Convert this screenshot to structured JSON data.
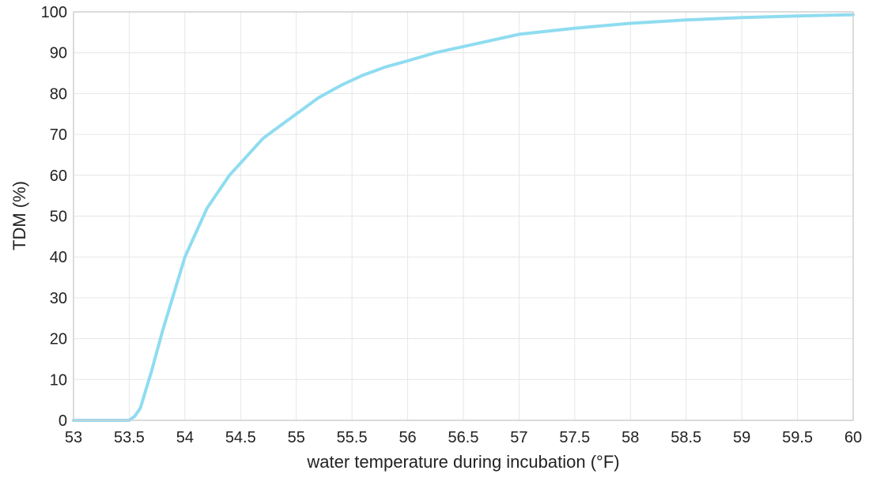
{
  "chart_data": {
    "type": "line",
    "title": "",
    "xlabel": "water temperature during incubation (°F)",
    "ylabel": "TDM (%)",
    "xlim": [
      53,
      60
    ],
    "ylim": [
      0,
      100
    ],
    "xticks": [
      53,
      53.5,
      54,
      54.5,
      55,
      55.5,
      56,
      56.5,
      57,
      57.5,
      58,
      58.5,
      59,
      59.5,
      60
    ],
    "xtick_labels": [
      "53",
      "53.5",
      "54",
      "54.5",
      "55",
      "55.5",
      "56",
      "56.5",
      "57",
      "57.5",
      "58",
      "58.5",
      "59",
      "59.5",
      "60"
    ],
    "yticks": [
      0,
      10,
      20,
      30,
      40,
      50,
      60,
      70,
      80,
      90,
      100
    ],
    "ytick_labels": [
      "0",
      "10",
      "20",
      "30",
      "40",
      "50",
      "60",
      "70",
      "80",
      "90",
      "100"
    ],
    "grid": true,
    "line_color": "#8fdcf0",
    "series": [
      {
        "x": [
          53,
          53.5,
          53.55,
          53.6,
          53.7,
          53.8,
          53.9,
          54.0,
          54.1,
          54.2,
          54.3,
          54.4,
          54.5,
          54.6,
          54.7,
          54.8,
          55.0,
          55.2,
          55.4,
          55.6,
          55.8,
          56.0,
          56.25,
          56.5,
          56.75,
          57.0,
          57.5,
          58.0,
          58.5,
          59.0,
          59.5,
          60.0
        ],
        "y": [
          0,
          0,
          1,
          3,
          12,
          22,
          31,
          40,
          46,
          52,
          56,
          60,
          63,
          66,
          69,
          71,
          75,
          79,
          82,
          84.5,
          86.5,
          88,
          90,
          91.5,
          93,
          94.5,
          96,
          97.2,
          98,
          98.6,
          99,
          99.3
        ]
      }
    ]
  }
}
